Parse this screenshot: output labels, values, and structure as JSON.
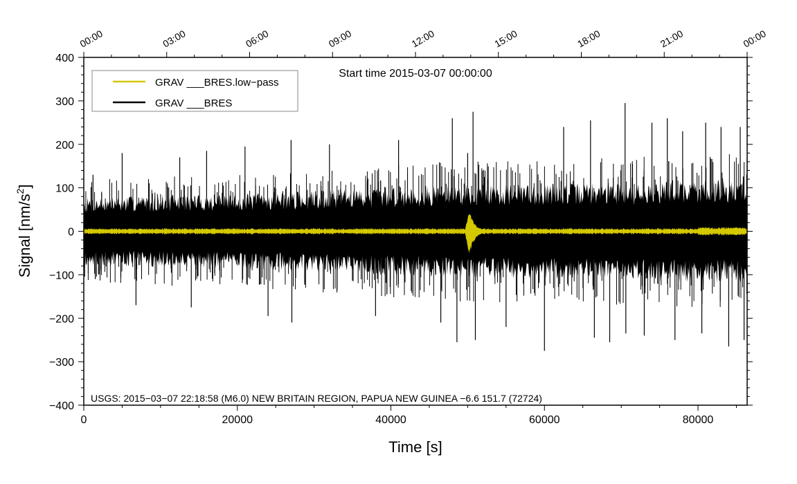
{
  "chart_data": {
    "type": "line",
    "title": "Start time 2015-03-07 00:00:00",
    "xlabel": "Time [s]",
    "ylabel_main": "Signal [nm/s",
    "ylabel_sup": "2",
    "ylabel_close": "]",
    "xlim": [
      0,
      86400
    ],
    "ylim": [
      -400,
      400
    ],
    "x_ticks": [
      0,
      20000,
      40000,
      60000,
      80000
    ],
    "x_tick_labels": [
      "0",
      "20000",
      "40000",
      "60000",
      "80000"
    ],
    "y_ticks": [
      -400,
      -300,
      -200,
      -100,
      0,
      100,
      200,
      300,
      400
    ],
    "y_tick_labels": [
      "−400",
      "−300",
      "−200",
      "−100",
      "0",
      "100",
      "200",
      "300",
      "400"
    ],
    "top_axis_ticks_s": [
      0,
      10800,
      21600,
      32400,
      43200,
      54000,
      64800,
      75600,
      86400
    ],
    "top_axis_labels": [
      "00:00",
      "03:00",
      "06:00",
      "09:00",
      "12:00",
      "15:00",
      "18:00",
      "21:00",
      "00:00"
    ],
    "legend_placement": "top-left",
    "annotation": "USGS: 2015−03−07 22:18:58 (M6.0) NEW BRITAIN REGION, PAPUA NEW GUINEA −6.6 151.7 (72724)",
    "series": [
      {
        "name": "GRAV ___BRES.low−pass",
        "color": "#d4c800",
        "baseline_amplitude": 5,
        "event_time_s": 50200,
        "event_peak_max": 52,
        "event_peak_min": -58
      },
      {
        "name": "GRAV ___BRES",
        "color": "#000000",
        "envelope": {
          "x": [
            0,
            10000,
            20000,
            30000,
            40000,
            50000,
            60000,
            70000,
            80000,
            86400
          ],
          "upper": [
            65,
            70,
            72,
            78,
            85,
            90,
            92,
            95,
            98,
            100
          ],
          "lower": [
            -65,
            -70,
            -72,
            -78,
            -85,
            -90,
            -92,
            -95,
            -98,
            -100
          ]
        },
        "spikes": [
          [
            1200,
            130
          ],
          [
            1500,
            -110
          ],
          [
            5000,
            180
          ],
          [
            6800,
            -170
          ],
          [
            12500,
            170
          ],
          [
            14000,
            -175
          ],
          [
            16000,
            185
          ],
          [
            21000,
            195
          ],
          [
            24000,
            -195
          ],
          [
            27000,
            210
          ],
          [
            27100,
            -210
          ],
          [
            32000,
            200
          ],
          [
            38000,
            -195
          ],
          [
            41000,
            210
          ],
          [
            46500,
            -210
          ],
          [
            48000,
            260
          ],
          [
            48600,
            -255
          ],
          [
            50000,
            180
          ],
          [
            50700,
            275
          ],
          [
            51000,
            -250
          ],
          [
            55000,
            -220
          ],
          [
            60000,
            -275
          ],
          [
            62500,
            240
          ],
          [
            66000,
            255
          ],
          [
            66500,
            -245
          ],
          [
            68500,
            -255
          ],
          [
            70500,
            295
          ],
          [
            70600,
            -235
          ],
          [
            73000,
            -240
          ],
          [
            74000,
            250
          ],
          [
            76000,
            260
          ],
          [
            77000,
            -250
          ],
          [
            78000,
            230
          ],
          [
            80500,
            -235
          ],
          [
            81000,
            250
          ],
          [
            83000,
            240
          ],
          [
            84000,
            -265
          ],
          [
            85500,
            240
          ],
          [
            86000,
            -250
          ]
        ]
      }
    ]
  }
}
